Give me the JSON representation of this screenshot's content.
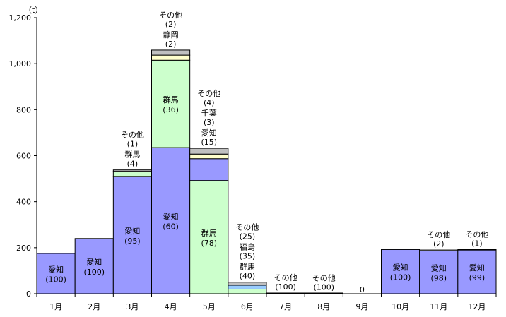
{
  "chart_data": {
    "type": "bar",
    "stacked": true,
    "unit": "（t）",
    "ylim": [
      0,
      1200
    ],
    "y_ticks": [
      "0",
      "200",
      "400",
      "600",
      "800",
      "1,000",
      "1,200"
    ],
    "y_tick_values": [
      0,
      200,
      400,
      600,
      800,
      1000,
      1200
    ],
    "grid": false,
    "colors": {
      "愛知": "#9999ff",
      "群馬": "#ccffcc",
      "千葉": "#ffffcc",
      "静岡": "#ffffcc",
      "福島": "#99ccff",
      "その他": "#c0c0c0"
    },
    "months": [
      {
        "label": "1月",
        "segments": [
          {
            "name": "愛知",
            "value": 175,
            "pct": "(100)",
            "show_name": true
          }
        ]
      },
      {
        "label": "2月",
        "segments": [
          {
            "name": "愛知",
            "value": 240,
            "pct": "(100)",
            "show_name": true
          }
        ]
      },
      {
        "label": "3月",
        "segments": [
          {
            "name": "愛知",
            "value": 510,
            "pct": "(95)",
            "show_name": true
          },
          {
            "name": "群馬",
            "value": 22,
            "pct": "(4)",
            "show_name": true
          },
          {
            "name": "その他",
            "value": 6,
            "pct": "(1)",
            "show_name": true
          }
        ]
      },
      {
        "label": "4月",
        "segments": [
          {
            "name": "愛知",
            "value": 635,
            "pct": "(60)",
            "show_name": true
          },
          {
            "name": "群馬",
            "value": 380,
            "pct": "(36)",
            "show_name": true
          },
          {
            "name": "静岡",
            "value": 22,
            "pct": "(2)",
            "show_name": true
          },
          {
            "name": "その他",
            "value": 22,
            "pct": "(2)",
            "show_name": true
          }
        ]
      },
      {
        "label": "5月",
        "segments": [
          {
            "name": "群馬",
            "value": 492,
            "pct": "(78)",
            "show_name": true
          },
          {
            "name": "愛知",
            "value": 95,
            "pct": "(15)",
            "show_name": true
          },
          {
            "name": "千葉",
            "value": 20,
            "pct": "(3)",
            "show_name": true
          },
          {
            "name": "その他",
            "value": 25,
            "pct": "(4)",
            "show_name": true
          }
        ]
      },
      {
        "label": "6月",
        "segments": [
          {
            "name": "群馬",
            "value": 20,
            "pct": "(40)",
            "show_name": true
          },
          {
            "name": "福島",
            "value": 17,
            "pct": "(35)",
            "show_name": true
          },
          {
            "name": "その他",
            "value": 13,
            "pct": "(25)",
            "show_name": true
          }
        ]
      },
      {
        "label": "7月",
        "segments": [
          {
            "name": "その他",
            "value": 3,
            "pct": "(100)",
            "show_name": true
          }
        ]
      },
      {
        "label": "8月",
        "segments": [
          {
            "name": "その他",
            "value": 1,
            "pct": "(100)",
            "show_name": true
          }
        ]
      },
      {
        "label": "9月",
        "segments": [],
        "zero_label": "0"
      },
      {
        "label": "10月",
        "segments": [
          {
            "name": "愛知",
            "value": 192,
            "pct": "(100)",
            "show_name": true
          }
        ]
      },
      {
        "label": "11月",
        "segments": [
          {
            "name": "愛知",
            "value": 186,
            "pct": "(98)",
            "show_name": true
          },
          {
            "name": "その他",
            "value": 4,
            "pct": "(2)",
            "show_name": true
          }
        ]
      },
      {
        "label": "12月",
        "segments": [
          {
            "name": "愛知",
            "value": 190,
            "pct": "(99)",
            "show_name": true
          },
          {
            "name": "その他",
            "value": 2,
            "pct": "(1)",
            "show_name": true
          }
        ]
      }
    ]
  }
}
